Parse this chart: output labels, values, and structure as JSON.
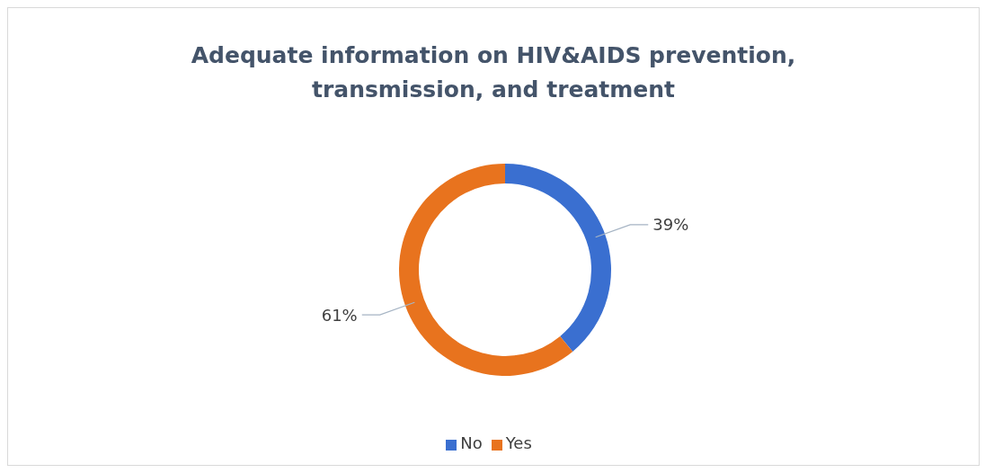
{
  "chart_data": {
    "type": "donut",
    "title": "Adequate information on HIV&AIDS prevention, transmission, and treatment",
    "categories": [
      "No",
      "Yes"
    ],
    "values": [
      39,
      61
    ],
    "colors": [
      "#3a6fd0",
      "#e8731e"
    ],
    "value_labels": [
      "39%",
      "61%"
    ],
    "legend": "bottom"
  }
}
